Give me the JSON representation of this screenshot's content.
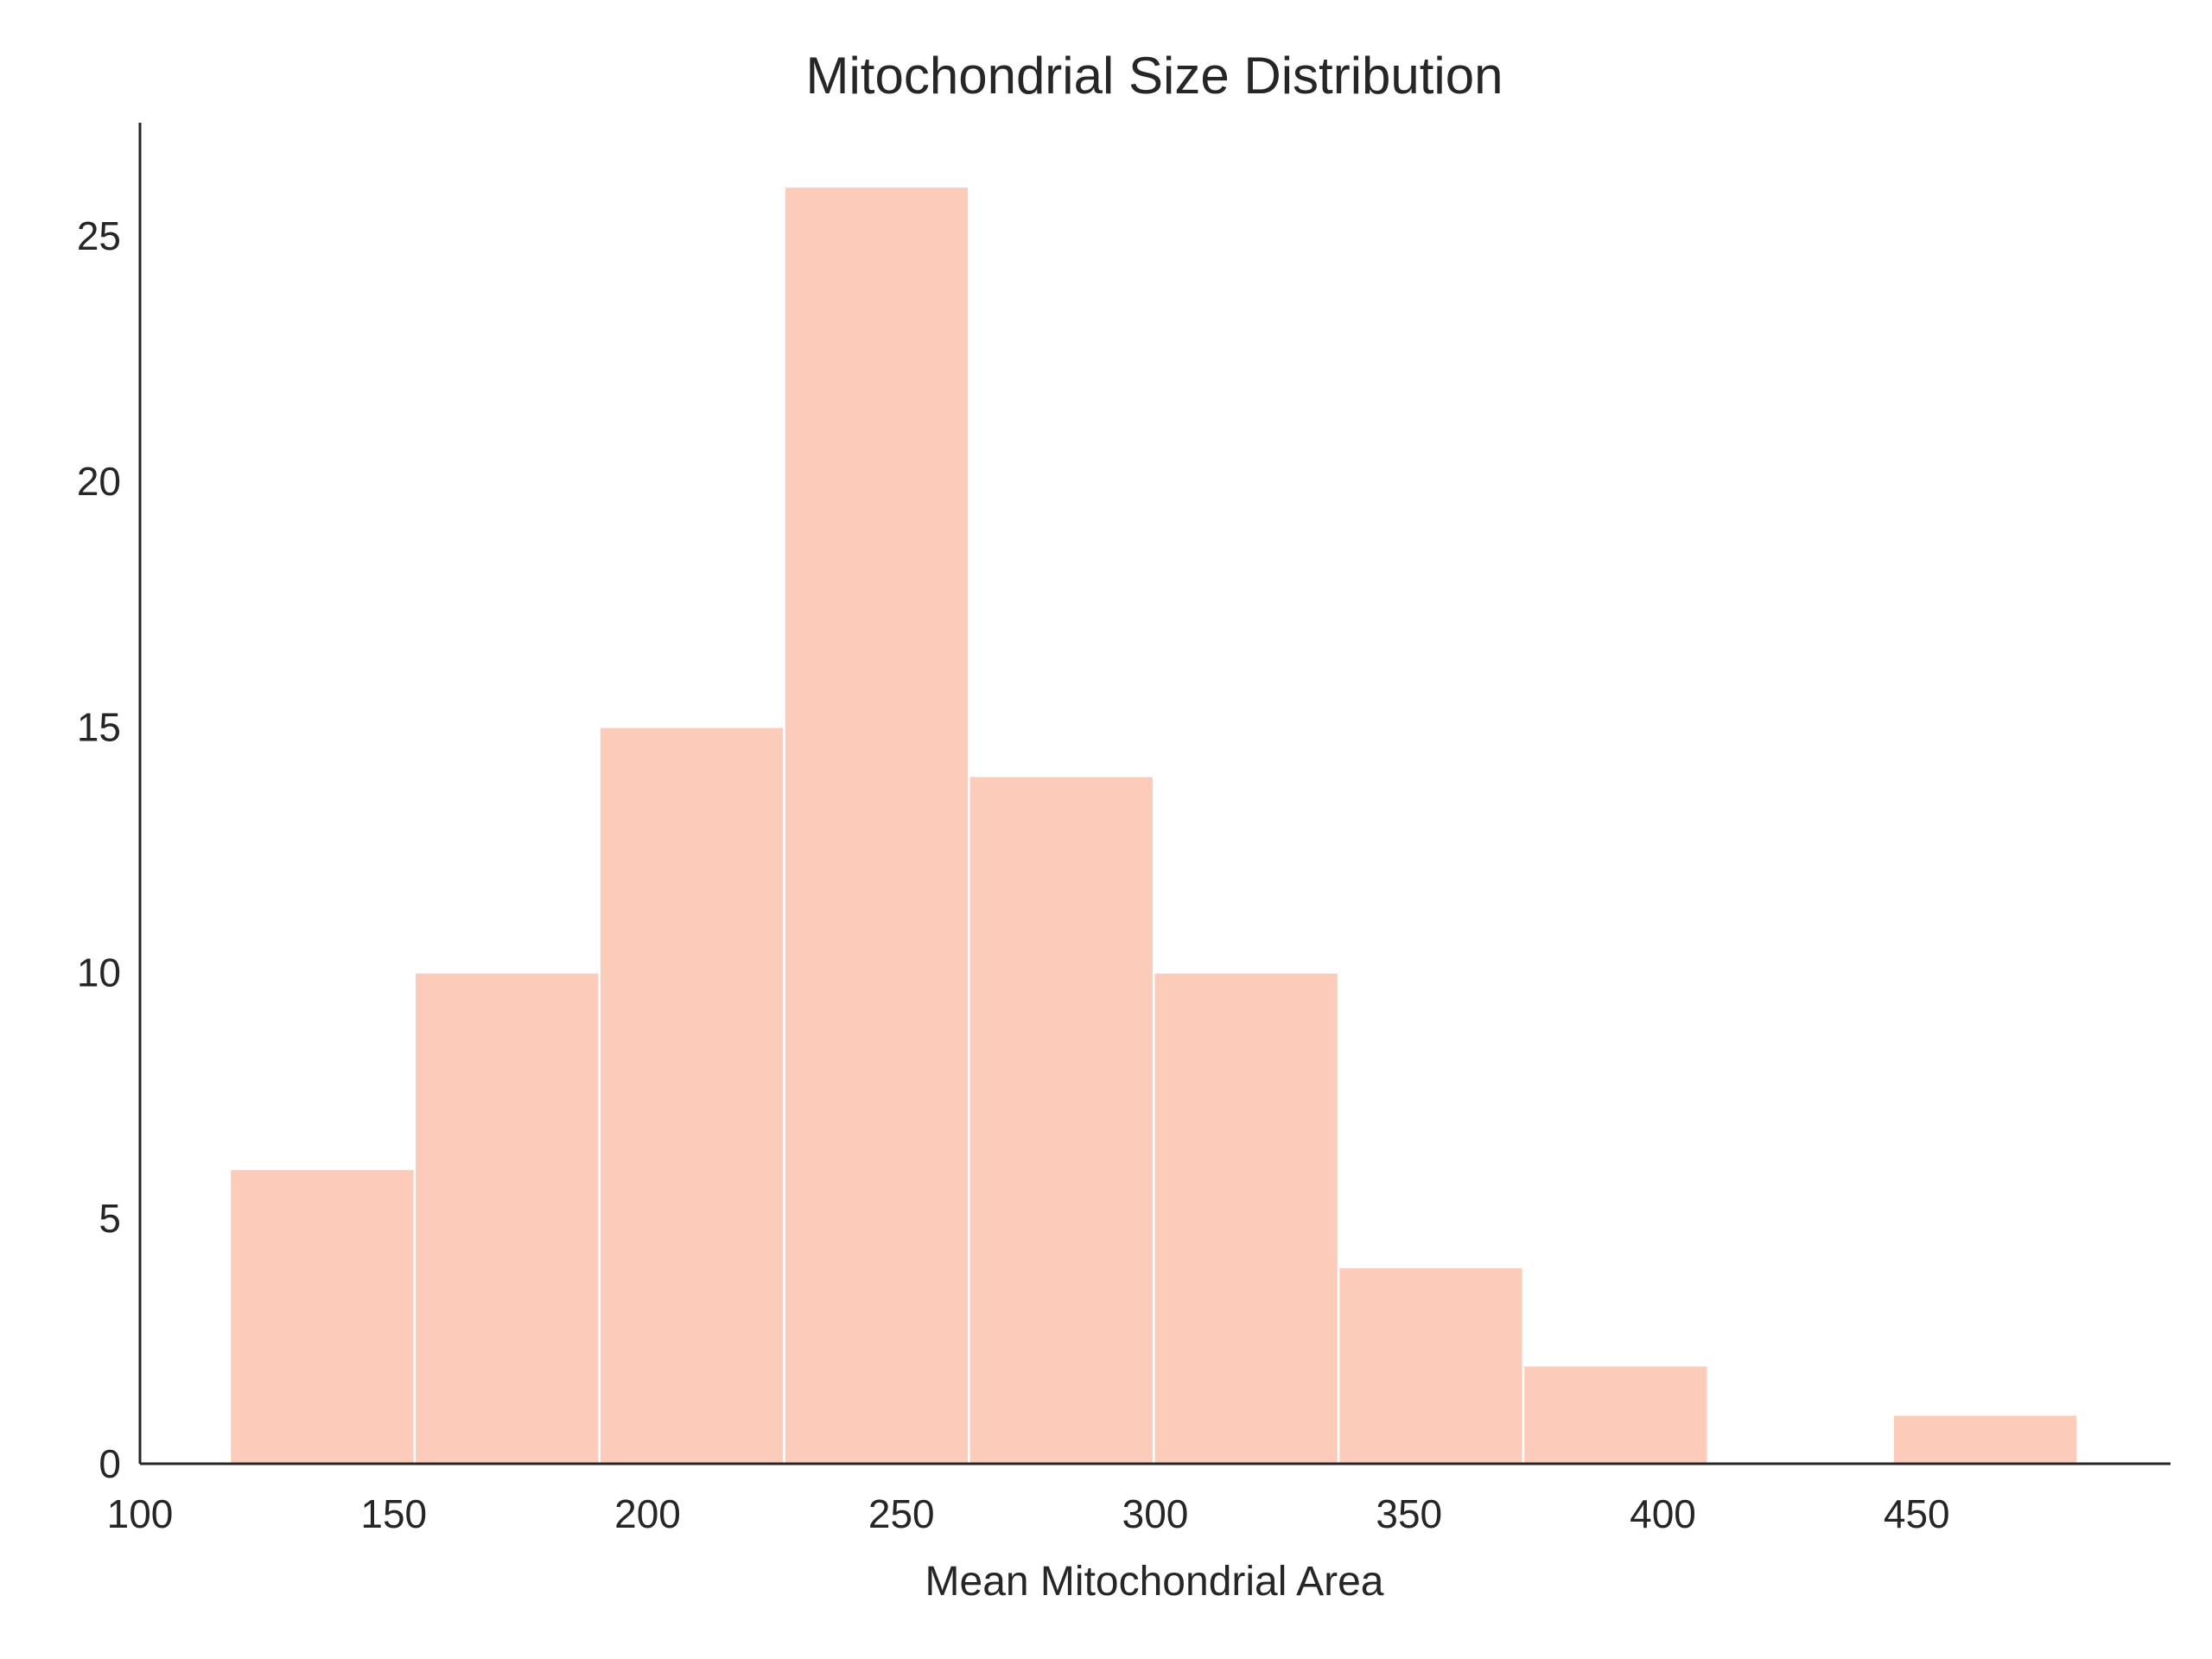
{
  "chart_data": {
    "type": "bar",
    "title": "Mitochondrial Size Distribution",
    "xlabel": "Mean Mitochondrial Area",
    "ylabel": "",
    "bin_edges": [
      117.7,
      154.1,
      190.5,
      226.9,
      263.3,
      299.7,
      336.1,
      372.5,
      408.9,
      445.3,
      481.7
    ],
    "counts": [
      6,
      10,
      15,
      26,
      14,
      10,
      4,
      2,
      0,
      1
    ],
    "xlim": [
      100,
      500
    ],
    "ylim": [
      0,
      27.3
    ],
    "xticks": [
      100,
      150,
      200,
      250,
      300,
      350,
      400,
      450
    ],
    "xtick_labels": [
      "100",
      "150",
      "200",
      "250",
      "300",
      "350",
      "400",
      "450"
    ],
    "yticks": [
      0,
      5,
      10,
      15,
      20,
      25
    ],
    "ytick_labels": [
      "0",
      "5",
      "10",
      "15",
      "20",
      "25"
    ],
    "grid": false,
    "bar_color": "#fdcbb9",
    "bar_edge_color": "#ffffff",
    "axis_color": "#262626"
  }
}
